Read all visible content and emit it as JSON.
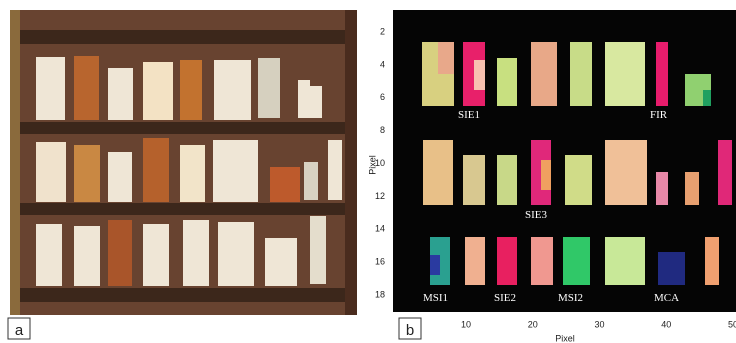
{
  "panels": {
    "a": {
      "label": "a"
    },
    "b": {
      "label": "b",
      "y_axis": {
        "label": "Pixel",
        "ticks": [
          2,
          4,
          6,
          8,
          10,
          12,
          14,
          16,
          18
        ]
      },
      "x_axis": {
        "label": "Pixel",
        "ticks": [
          10,
          20,
          30,
          40,
          50
        ]
      },
      "regions": [
        "SIE1",
        "FIR",
        "SIE3",
        "MSI1",
        "SIE2",
        "MSI2",
        "MCA"
      ]
    }
  }
}
